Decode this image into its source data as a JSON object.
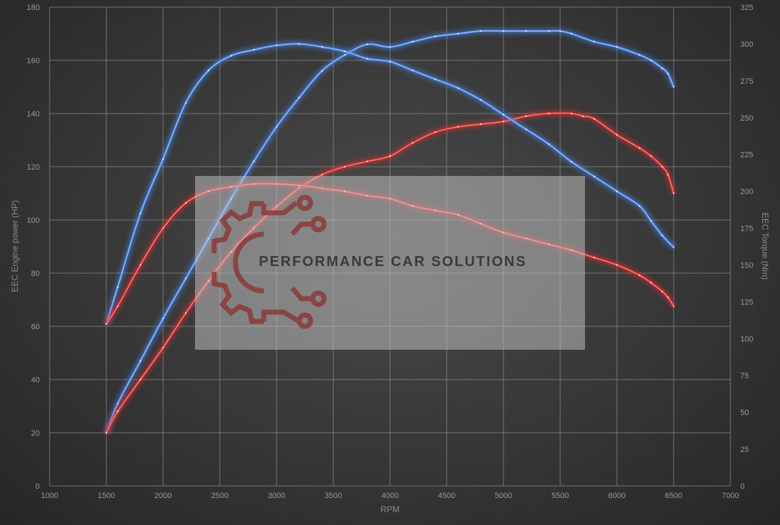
{
  "chart_data": {
    "type": "line",
    "xlabel": "RPM",
    "ylabel_left": "EEC Engine power (HP)",
    "ylabel_right": "EEC Torque (Nm)",
    "xlim": [
      1000,
      7000
    ],
    "ylim_left": [
      0,
      180
    ],
    "ylim_right": [
      0,
      325
    ],
    "x_ticks": [
      1000,
      1500,
      2000,
      2500,
      3000,
      3500,
      4000,
      4500,
      5000,
      5500,
      6000,
      6500,
      7000
    ],
    "y_left_ticks": [
      0,
      20,
      40,
      60,
      80,
      100,
      120,
      140,
      160,
      180
    ],
    "y_right_ticks": [
      0,
      25,
      50,
      75,
      100,
      125,
      150,
      175,
      200,
      225,
      250,
      275,
      300,
      325
    ],
    "grid": true,
    "series": [
      {
        "axis": "left",
        "color": "#4a86e8",
        "x": [
          1500,
          1600,
          1800,
          2000,
          2200,
          2400,
          2600,
          2800,
          3000,
          3200,
          3400,
          3600,
          3800,
          4000,
          4200,
          4400,
          4600,
          4800,
          5000,
          5200,
          5400,
          5500,
          5600,
          5800,
          6000,
          6200,
          6300,
          6400,
          6450,
          6500
        ],
        "y": [
          20,
          31,
          47,
          63,
          78,
          93,
          108,
          122,
          135,
          146,
          156,
          162,
          166,
          165,
          167,
          169,
          170,
          171,
          171,
          171,
          171,
          171,
          170,
          167,
          165,
          162,
          160,
          157,
          155,
          150
        ]
      },
      {
        "axis": "left",
        "color": "#e03030",
        "x": [
          1500,
          1600,
          1800,
          2000,
          2200,
          2400,
          2600,
          2800,
          3000,
          3200,
          3400,
          3600,
          3800,
          4000,
          4200,
          4400,
          4600,
          4800,
          5000,
          5200,
          5400,
          5600,
          5700,
          5800,
          6000,
          6200,
          6300,
          6400,
          6450,
          6500
        ],
        "y": [
          20,
          28,
          40,
          52,
          65,
          77,
          88,
          97,
          105,
          112,
          117,
          120,
          122,
          124,
          129,
          133,
          135,
          136,
          137,
          139,
          140,
          140,
          139,
          138,
          132,
          127,
          124,
          120,
          117,
          110
        ]
      },
      {
        "axis": "right",
        "color": "#4a86e8",
        "x": [
          1500,
          1600,
          1800,
          2000,
          2200,
          2400,
          2600,
          2800,
          3000,
          3200,
          3400,
          3600,
          3800,
          4000,
          4200,
          4400,
          4600,
          4800,
          5000,
          5200,
          5400,
          5600,
          5800,
          6000,
          6200,
          6300,
          6400,
          6500
        ],
        "y": [
          110,
          135,
          185,
          222,
          260,
          282,
          292,
          296,
          299,
          300,
          298,
          295,
          290,
          288,
          282,
          276,
          270,
          262,
          252,
          242,
          232,
          220,
          210,
          200,
          190,
          180,
          170,
          162
        ]
      },
      {
        "axis": "right",
        "color": "#e03030",
        "x": [
          1500,
          1600,
          1800,
          2000,
          2200,
          2400,
          2600,
          2800,
          3000,
          3200,
          3400,
          3600,
          3800,
          4000,
          4200,
          4400,
          4600,
          4800,
          5000,
          5200,
          5400,
          5600,
          5800,
          6000,
          6200,
          6300,
          6400,
          6450,
          6500
        ],
        "y": [
          110,
          122,
          150,
          175,
          192,
          200,
          203,
          205,
          205,
          204,
          202,
          200,
          197,
          195,
          190,
          187,
          184,
          178,
          172,
          168,
          164,
          160,
          155,
          150,
          143,
          138,
          132,
          128,
          122
        ]
      }
    ]
  },
  "watermark": {
    "text": "PERFORMANCE CAR SOLUTIONS",
    "logo": "gear-circuit-logo"
  }
}
